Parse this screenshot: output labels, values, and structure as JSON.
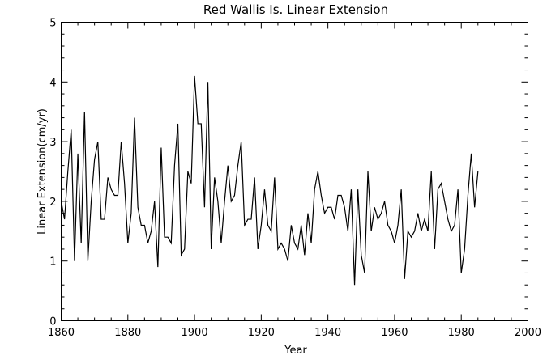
{
  "chart_data": {
    "type": "line",
    "title": "Red Wallis Is. Linear Extension",
    "xlabel": "Year",
    "ylabel": "Linear Extension(cm/yr)",
    "xlim": [
      1860,
      2000
    ],
    "ylim": [
      0,
      5
    ],
    "x_ticks": [
      "1860",
      "1880",
      "1900",
      "1920",
      "1940",
      "1960",
      "1980",
      "2000"
    ],
    "y_ticks": [
      "0",
      "1",
      "2",
      "3",
      "4",
      "5"
    ],
    "grid": false,
    "series": [
      {
        "x": [
          1860,
          1861,
          1862,
          1863,
          1864,
          1865,
          1866,
          1867,
          1868,
          1869,
          1870,
          1871,
          1872,
          1873,
          1874,
          1875,
          1876,
          1877,
          1878,
          1879,
          1880,
          1881,
          1882,
          1883,
          1884,
          1885,
          1886,
          1887,
          1888,
          1889,
          1890,
          1891,
          1892,
          1893,
          1894,
          1895,
          1896,
          1897,
          1898,
          1899,
          1900,
          1901,
          1902,
          1903,
          1904,
          1905,
          1906,
          1907,
          1908,
          1909,
          1910,
          1911,
          1912,
          1913,
          1914,
          1915,
          1916,
          1917,
          1918,
          1919,
          1920,
          1921,
          1922,
          1923,
          1924,
          1925,
          1926,
          1927,
          1928,
          1929,
          1930,
          1931,
          1932,
          1933,
          1934,
          1935,
          1936,
          1937,
          1938,
          1939,
          1940,
          1941,
          1942,
          1943,
          1944,
          1945,
          1946,
          1947,
          1948,
          1949,
          1950,
          1951,
          1952,
          1953,
          1954,
          1955,
          1956,
          1957,
          1958,
          1959,
          1960,
          1961,
          1962,
          1963,
          1964,
          1965,
          1966,
          1967,
          1968,
          1969,
          1970,
          1971,
          1972,
          1973,
          1974,
          1975,
          1976,
          1977,
          1978,
          1979,
          1980,
          1981,
          1982,
          1983,
          1984,
          1985
        ],
        "values": [
          2.0,
          1.7,
          2.5,
          3.2,
          1.0,
          2.8,
          1.3,
          3.5,
          1.0,
          2.0,
          2.7,
          3.0,
          1.7,
          1.7,
          2.4,
          2.2,
          2.1,
          2.1,
          3.0,
          2.3,
          1.3,
          1.8,
          3.4,
          1.9,
          1.6,
          1.6,
          1.3,
          1.5,
          2.0,
          0.9,
          2.9,
          1.4,
          1.4,
          1.3,
          2.6,
          3.3,
          1.1,
          1.2,
          2.5,
          2.3,
          4.1,
          3.3,
          3.3,
          1.9,
          4.0,
          1.2,
          2.4,
          2.0,
          1.3,
          2.0,
          2.6,
          2.0,
          2.1,
          2.6,
          3.0,
          1.6,
          1.7,
          1.7,
          2.4,
          1.2,
          1.6,
          2.2,
          1.6,
          1.5,
          2.4,
          1.2,
          1.3,
          1.2,
          1.0,
          1.6,
          1.3,
          1.2,
          1.6,
          1.1,
          1.8,
          1.3,
          2.2,
          2.5,
          2.1,
          1.8,
          1.9,
          1.9,
          1.7,
          2.1,
          2.1,
          1.9,
          1.5,
          2.2,
          0.6,
          2.2,
          1.1,
          0.8,
          2.5,
          1.5,
          1.9,
          1.7,
          1.8,
          2.0,
          1.6,
          1.5,
          1.3,
          1.6,
          2.2,
          0.7,
          1.5,
          1.4,
          1.5,
          1.8,
          1.5,
          1.7,
          1.5,
          2.5,
          1.2,
          2.2,
          2.3,
          2.0,
          1.7,
          1.5,
          1.6,
          2.2,
          0.8,
          1.2,
          2.1,
          2.8,
          1.9,
          2.5
        ]
      }
    ]
  }
}
